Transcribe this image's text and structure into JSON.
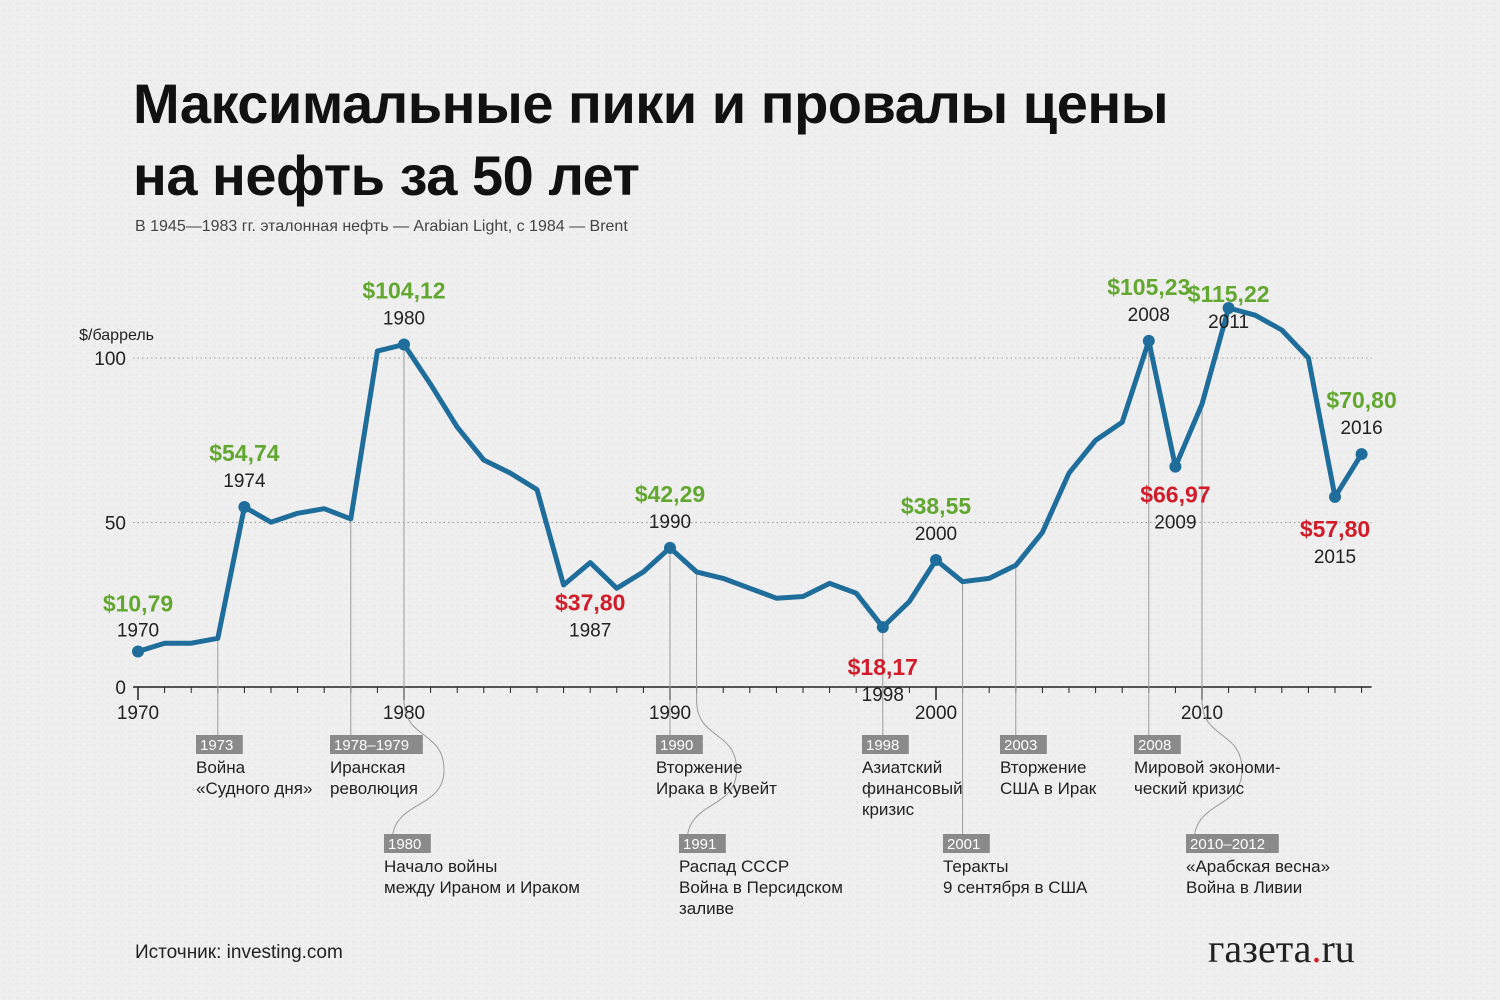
{
  "title": "Максимальные пики и провалы цены на нефть за 50 лет",
  "subtitle": "В 1945—1983 гг. эталонная нефть — Arabian Light, с 1984 — Brent",
  "source": "Источник: investing.com",
  "brand": {
    "main": "газета",
    "dot": ".",
    "tld": "ru"
  },
  "colors": {
    "line": "#1f6d9b",
    "peak": "#62a72f",
    "trough": "#d21c2a",
    "axis": "#222222",
    "event_tag": "#8a8a8a"
  },
  "chart_data": {
    "type": "line",
    "title": "Максимальные пики и провалы цены на нефть за 50 лет",
    "ylabel": "$/баррель",
    "xlabel": "",
    "ylim": [
      0,
      100
    ],
    "xlim": [
      1970,
      2016
    ],
    "yticks": [
      0,
      50,
      100
    ],
    "xticks": [
      1970,
      1980,
      1990,
      2000,
      2010
    ],
    "grid": "dotted horizontal at 50 and 100",
    "series": [
      {
        "values": [
          [
            1970,
            10.8
          ],
          [
            1971,
            13.3
          ],
          [
            1972,
            13.3
          ],
          [
            1973,
            14.8
          ],
          [
            1974,
            54.7
          ],
          [
            1975,
            50.1
          ],
          [
            1976,
            52.8
          ],
          [
            1977,
            54.2
          ],
          [
            1978,
            51.1
          ],
          [
            1979,
            102.1
          ],
          [
            1980,
            104.1
          ],
          [
            1981,
            92.0
          ],
          [
            1982,
            79.0
          ],
          [
            1983,
            69.0
          ],
          [
            1984,
            65.0
          ],
          [
            1985,
            60.0
          ],
          [
            1986,
            31.0
          ],
          [
            1987,
            37.8
          ],
          [
            1988,
            30.0
          ],
          [
            1989,
            35.0
          ],
          [
            1990,
            42.3
          ],
          [
            1991,
            35.0
          ],
          [
            1992,
            33.0
          ],
          [
            1993,
            30.0
          ],
          [
            1994,
            27.0
          ],
          [
            1995,
            27.5
          ],
          [
            1996,
            31.5
          ],
          [
            1997,
            28.5
          ],
          [
            1998,
            18.2
          ],
          [
            1999,
            26.0
          ],
          [
            2000,
            38.6
          ],
          [
            2001,
            32.0
          ],
          [
            2002,
            33.0
          ],
          [
            2003,
            37.0
          ],
          [
            2004,
            47.0
          ],
          [
            2005,
            65.0
          ],
          [
            2006,
            75.0
          ],
          [
            2007,
            80.5
          ],
          [
            2008,
            105.2
          ],
          [
            2009,
            67.0
          ],
          [
            2010,
            86.0
          ],
          [
            2011,
            115.2
          ],
          [
            2012,
            113.0
          ],
          [
            2013,
            108.5
          ],
          [
            2014,
            100.0
          ],
          [
            2015,
            57.8
          ],
          [
            2016,
            70.8
          ]
        ]
      }
    ],
    "labels": [
      {
        "year": 1970,
        "price": "$10,79",
        "label_year": "1970",
        "kind": "peak"
      },
      {
        "year": 1974,
        "price": "$54,74",
        "label_year": "1974",
        "kind": "peak"
      },
      {
        "year": 1980,
        "price": "$104,12",
        "label_year": "1980",
        "kind": "peak"
      },
      {
        "year": 1987,
        "price": "$37,80",
        "label_year": "1987",
        "kind": "trough"
      },
      {
        "year": 1990,
        "price": "$42,29",
        "label_year": "1990",
        "kind": "peak"
      },
      {
        "year": 1998,
        "price": "$18,17",
        "label_year": "1998",
        "kind": "trough"
      },
      {
        "year": 2000,
        "price": "$38,55",
        "label_year": "2000",
        "kind": "peak"
      },
      {
        "year": 2008,
        "price": "$105,23",
        "label_year": "2008",
        "kind": "peak"
      },
      {
        "year": 2009,
        "price": "$66,97",
        "label_year": "2009",
        "kind": "trough"
      },
      {
        "year": 2011,
        "price": "$115,22",
        "label_year": "2011",
        "kind": "peak"
      },
      {
        "year": 2015,
        "price": "$57,80",
        "label_year": "2015",
        "kind": "trough"
      },
      {
        "year": 2016,
        "price": "$70,80",
        "label_year": "2016",
        "kind": "peak"
      }
    ],
    "events": [
      {
        "tag": "1973",
        "lines": [
          "Война",
          "«Судного дня»"
        ],
        "year": 1973
      },
      {
        "tag": "1978–1979",
        "lines": [
          "Иранская",
          "революция"
        ],
        "year": 1978
      },
      {
        "tag": "1980",
        "lines": [
          "Начало войны",
          "между Ираном и Ираком"
        ],
        "year": 1980
      },
      {
        "tag": "1990",
        "lines": [
          "Вторжение",
          "Ирака в Кувейт"
        ],
        "year": 1990
      },
      {
        "tag": "1991",
        "lines": [
          "Распад СССР",
          "Война в Персидском",
          "заливе"
        ],
        "year": 1991
      },
      {
        "tag": "1998",
        "lines": [
          "Азиатский",
          "финансовый",
          "кризис"
        ],
        "year": 1998
      },
      {
        "tag": "2001",
        "lines": [
          "Теракты",
          "9 сентября в США"
        ],
        "year": 2001
      },
      {
        "tag": "2003",
        "lines": [
          "Вторжение",
          "США в Ирак"
        ],
        "year": 2003
      },
      {
        "tag": "2008",
        "lines": [
          "Мировой экономи-",
          "ческий кризис"
        ],
        "year": 2008
      },
      {
        "tag": "2010–2012",
        "lines": [
          "«Арабская весна»",
          "Война в Ливии"
        ],
        "year": 2010
      }
    ]
  }
}
